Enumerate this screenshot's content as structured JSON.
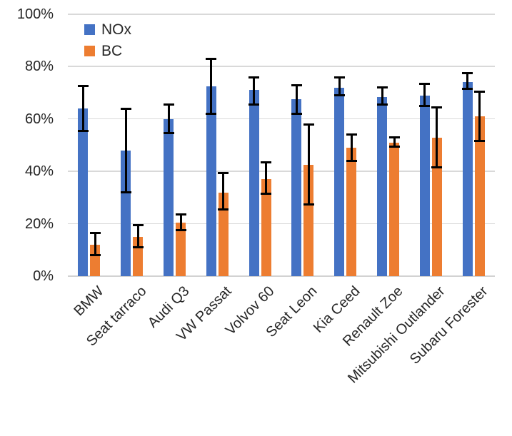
{
  "chart_data": {
    "type": "bar",
    "title": "",
    "xlabel": "",
    "ylabel": "",
    "ylim": [
      0,
      100
    ],
    "grid": true,
    "legend_position": "top-left-inside",
    "yticks": [
      0,
      20,
      40,
      60,
      80,
      100
    ],
    "ytick_labels": [
      "0%",
      "20%",
      "40%",
      "60%",
      "80%",
      "100%"
    ],
    "categories": [
      "BMW",
      "Seat tarraco",
      "Audi Q3",
      "VW Passat",
      "Volvov 60",
      "Seat Leon",
      "Kia Ceed",
      "Renault Zoe",
      "Mitsubishi Outlander",
      "Subaru Forester"
    ],
    "series": [
      {
        "name": "NOx",
        "color": "#4472C4",
        "values": [
          64,
          48,
          60,
          72.5,
          71,
          67.5,
          72,
          68.5,
          69,
          74
        ],
        "err_low": [
          55.5,
          32,
          54.5,
          62,
          65.5,
          62,
          69,
          65.5,
          65,
          71.5
        ],
        "err_high": [
          72.5,
          64,
          65.5,
          83,
          76,
          73,
          76,
          72,
          73.5,
          77.5
        ]
      },
      {
        "name": "BC",
        "color": "#ED7D31",
        "values": [
          12,
          15,
          20.5,
          32,
          37,
          42.5,
          49,
          51,
          53,
          61
        ],
        "err_low": [
          8,
          11,
          17.5,
          25.5,
          31.5,
          27.5,
          44,
          49.5,
          41.5,
          51.5
        ],
        "err_high": [
          16.5,
          19.5,
          23.5,
          39.5,
          43.5,
          58,
          54,
          53,
          64.5,
          70.5
        ]
      }
    ],
    "error_bar_color": "#000000",
    "gridline_color": "#D9D9D9"
  }
}
